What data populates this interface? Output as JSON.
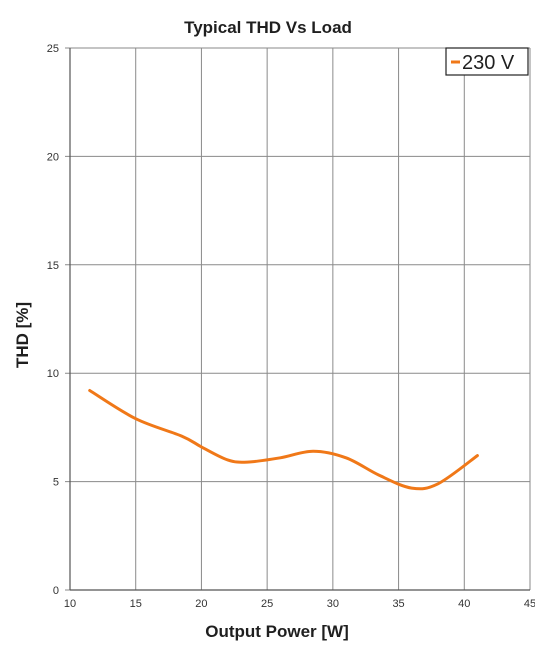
{
  "chart_data": {
    "type": "line",
    "title": "Typical THD Vs Load",
    "xlabel": "Output Power [W]",
    "ylabel": "THD [%]",
    "xlim": [
      10,
      45
    ],
    "ylim": [
      0,
      25
    ],
    "xticks": [
      "10",
      "15",
      "20",
      "25",
      "30",
      "35",
      "40",
      "45"
    ],
    "yticks": [
      "0",
      "5",
      "10",
      "15",
      "20",
      "25"
    ],
    "grid": true,
    "legend_position": "top-right",
    "series": [
      {
        "name": "230 V",
        "color": "#f07818",
        "x": [
          11.5,
          15,
          18.5,
          20,
          22,
          23.5,
          26,
          28.5,
          31,
          33.5,
          36,
          38,
          41
        ],
        "y": [
          9.2,
          7.9,
          7.1,
          6.6,
          6.0,
          5.9,
          6.1,
          6.4,
          6.1,
          5.3,
          4.7,
          4.9,
          6.2
        ]
      }
    ]
  }
}
